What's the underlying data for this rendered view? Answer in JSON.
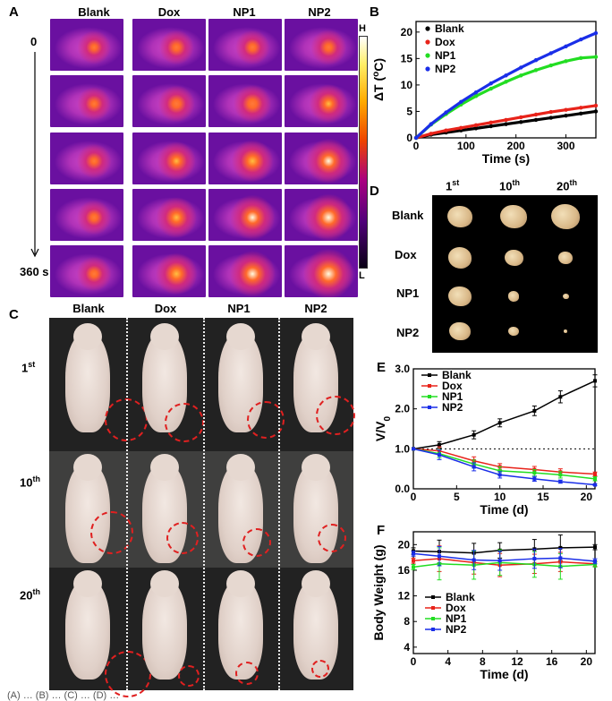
{
  "panels": {
    "a": "A",
    "b": "B",
    "c": "C",
    "d": "D",
    "e": "E",
    "f": "F"
  },
  "groups": [
    "Blank",
    "Dox",
    "NP1",
    "NP2"
  ],
  "panel_a": {
    "time_start": "0",
    "time_end": "360 s",
    "scale_high": "H",
    "scale_low": "L",
    "intensity": [
      [
        0.1,
        0.18,
        0.15,
        0.2
      ],
      [
        0.12,
        0.3,
        0.35,
        0.4
      ],
      [
        0.14,
        0.4,
        0.55,
        0.7
      ],
      [
        0.15,
        0.48,
        0.7,
        0.85
      ],
      [
        0.16,
        0.55,
        0.8,
        1.0
      ]
    ]
  },
  "panel_c": {
    "row_labels": [
      {
        "main": "1",
        "sup": "st"
      },
      {
        "main": "10",
        "sup": "th"
      },
      {
        "main": "20",
        "sup": "th"
      }
    ]
  },
  "panel_d": {
    "col_labels": [
      {
        "main": "1",
        "sup": "st"
      },
      {
        "main": "10",
        "sup": "th"
      },
      {
        "main": "20",
        "sup": "th"
      }
    ],
    "relative_size": [
      [
        1.0,
        1.05,
        1.15
      ],
      [
        0.95,
        0.75,
        0.55
      ],
      [
        0.9,
        0.45,
        0.25
      ],
      [
        0.85,
        0.4,
        0.12
      ]
    ]
  },
  "caption": "(A) … (B) … (C) … (D) …",
  "chart_data": [
    {
      "id": "B",
      "type": "scatter",
      "title": "",
      "xlabel": "Time (s)",
      "ylabel": "ΔT (°C)",
      "xlim": [
        0,
        360
      ],
      "ylim": [
        0,
        22
      ],
      "xticks": [
        0,
        100,
        200,
        300
      ],
      "yticks": [
        0,
        5,
        10,
        15,
        20
      ],
      "legend_position": "top-left",
      "series": [
        {
          "name": "Blank",
          "color": "#000000",
          "x": [
            0,
            30,
            60,
            90,
            120,
            150,
            180,
            210,
            240,
            270,
            300,
            330,
            360
          ],
          "y": [
            0,
            0.6,
            1.0,
            1.4,
            1.8,
            2.2,
            2.6,
            3.0,
            3.4,
            3.8,
            4.2,
            4.6,
            5.0
          ]
        },
        {
          "name": "Dox",
          "color": "#e8231a",
          "x": [
            0,
            30,
            60,
            90,
            120,
            150,
            180,
            210,
            240,
            270,
            300,
            330,
            360
          ],
          "y": [
            0,
            0.8,
            1.4,
            1.9,
            2.4,
            2.9,
            3.4,
            3.9,
            4.4,
            4.9,
            5.3,
            5.7,
            6.1
          ]
        },
        {
          "name": "NP1",
          "color": "#22dd22",
          "x": [
            0,
            30,
            60,
            90,
            120,
            150,
            180,
            210,
            240,
            270,
            300,
            330,
            360
          ],
          "y": [
            0,
            2.5,
            4.5,
            6.3,
            7.9,
            9.3,
            10.6,
            11.8,
            12.8,
            13.7,
            14.5,
            15.1,
            15.3
          ]
        },
        {
          "name": "NP2",
          "color": "#1a2ee8",
          "x": [
            0,
            30,
            60,
            90,
            120,
            150,
            180,
            210,
            240,
            270,
            300,
            330,
            360
          ],
          "y": [
            0,
            2.6,
            4.8,
            6.8,
            8.6,
            10.3,
            11.8,
            13.3,
            14.7,
            16.0,
            17.3,
            18.6,
            19.8
          ]
        }
      ]
    },
    {
      "id": "E",
      "type": "line",
      "title": "",
      "xlabel": "Time (d)",
      "ylabel": "V/V0",
      "xlim": [
        0,
        21
      ],
      "ylim": [
        0,
        3
      ],
      "xticks": [
        0,
        5,
        10,
        15,
        20
      ],
      "yticks": [
        0.0,
        1.0,
        2.0,
        3.0
      ],
      "reference_y": 1.0,
      "legend_position": "top-left",
      "x": [
        0,
        3,
        7,
        10,
        14,
        17,
        21
      ],
      "series": [
        {
          "name": "Blank",
          "color": "#000000",
          "values": [
            1.0,
            1.1,
            1.35,
            1.65,
            1.95,
            2.3,
            2.7
          ],
          "errors": [
            0,
            0.08,
            0.1,
            0.1,
            0.12,
            0.15,
            0.15
          ]
        },
        {
          "name": "Dox",
          "color": "#e8231a",
          "values": [
            1.0,
            0.95,
            0.7,
            0.55,
            0.48,
            0.42,
            0.37
          ],
          "errors": [
            0,
            0.1,
            0.1,
            0.08,
            0.08,
            0.08,
            0.05
          ]
        },
        {
          "name": "NP1",
          "color": "#22dd22",
          "values": [
            1.0,
            0.88,
            0.62,
            0.45,
            0.4,
            0.35,
            0.25
          ],
          "errors": [
            0,
            0.1,
            0.1,
            0.1,
            0.08,
            0.08,
            0.05
          ]
        },
        {
          "name": "NP2",
          "color": "#1a2ee8",
          "values": [
            1.0,
            0.85,
            0.55,
            0.35,
            0.25,
            0.18,
            0.1
          ],
          "errors": [
            0,
            0.12,
            0.1,
            0.08,
            0.06,
            0.04,
            0.02
          ]
        }
      ]
    },
    {
      "id": "F",
      "type": "line",
      "title": "",
      "xlabel": "Time (d)",
      "ylabel": "Body Weight (g)",
      "xlim": [
        0,
        21
      ],
      "ylim": [
        3,
        22
      ],
      "xticks": [
        0,
        4,
        8,
        12,
        16,
        20
      ],
      "yticks": [
        4,
        8,
        12,
        16,
        20
      ],
      "legend_position": "bottom-left",
      "x": [
        0,
        3,
        7,
        10,
        14,
        17,
        21
      ],
      "series": [
        {
          "name": "Blank",
          "color": "#000000",
          "values": [
            19.0,
            18.9,
            18.7,
            19.1,
            19.3,
            19.5,
            19.6
          ],
          "errors": [
            0.5,
            1.8,
            1.5,
            1.2,
            1.5,
            2.0,
            0.4
          ]
        },
        {
          "name": "Dox",
          "color": "#e8231a",
          "values": [
            17.5,
            17.8,
            17.2,
            16.8,
            17.0,
            17.3,
            17.0
          ],
          "errors": [
            0.4,
            2.0,
            1.8,
            1.8,
            1.5,
            1.5,
            0.4
          ]
        },
        {
          "name": "NP1",
          "color": "#22dd22",
          "values": [
            16.5,
            17.0,
            16.8,
            17.2,
            16.9,
            16.6,
            16.9
          ],
          "errors": [
            0.4,
            2.5,
            2.2,
            2.0,
            2.0,
            2.0,
            0.4
          ]
        },
        {
          "name": "NP2",
          "color": "#1a2ee8",
          "values": [
            18.6,
            18.2,
            17.6,
            17.5,
            17.8,
            17.9,
            17.4
          ],
          "errors": [
            0.4,
            1.5,
            1.5,
            1.5,
            1.5,
            1.5,
            0.4
          ]
        }
      ]
    }
  ]
}
